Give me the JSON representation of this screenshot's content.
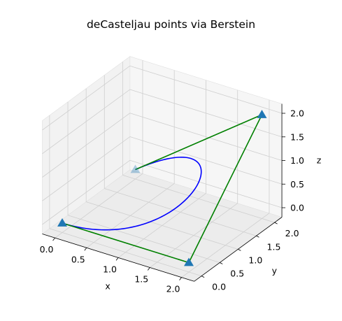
{
  "chart_data": {
    "type": "3d-line",
    "title": "deCasteljau points via Berstein",
    "xlabel": "x",
    "ylabel": "y",
    "zlabel": "z",
    "xlim": [
      0,
      2
    ],
    "ylim": [
      0,
      2
    ],
    "zlim": [
      0,
      2
    ],
    "xticks": [
      "0.0",
      "0.5",
      "1.0",
      "1.5",
      "2.0"
    ],
    "yticks": [
      "0.0",
      "0.5",
      "1.0",
      "1.5",
      "2.0"
    ],
    "zticks": [
      "0.0",
      "0.5",
      "1.0",
      "1.5",
      "2.0"
    ],
    "grid": true,
    "control_points": [
      {
        "x": 0,
        "y": 0,
        "z": 0
      },
      {
        "x": 2,
        "y": 0,
        "z": 0
      },
      {
        "x": 2,
        "y": 2,
        "z": 2
      },
      {
        "x": 0,
        "y": 2,
        "z": 0
      }
    ],
    "control_polygon_color": "#008000",
    "curve_color": "#0000ff",
    "marker_color": "#1f77b4",
    "marker": "triangle"
  }
}
